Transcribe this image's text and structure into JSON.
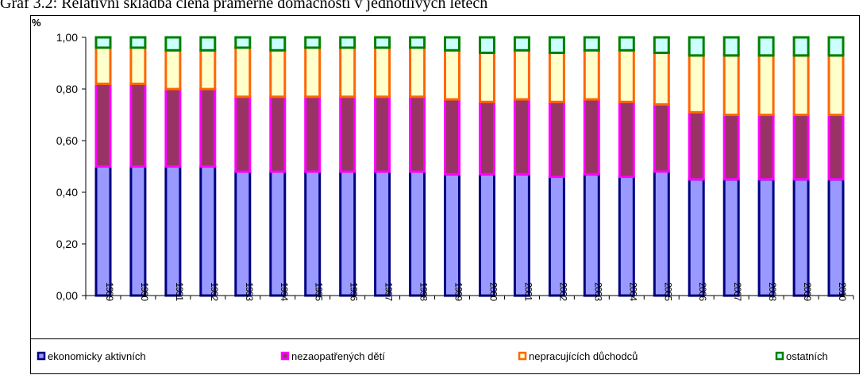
{
  "chart_data": {
    "type": "bar",
    "stacked": true,
    "title": "Graf 3.2: Relativní skladba člena praměrné domácnosti v jednotlivých letech",
    "ylabel": "%",
    "ylim": [
      0,
      1
    ],
    "yticks": [
      "0,00",
      "0,20",
      "0,40",
      "0,60",
      "0,80",
      "1,00"
    ],
    "grid": false,
    "legend_position": "bottom",
    "categories": [
      "1989",
      "1990",
      "1991",
      "1992",
      "1993",
      "1994",
      "1995",
      "1996",
      "1997",
      "1998",
      "1999",
      "2000",
      "2001",
      "2002",
      "2003",
      "2004",
      "2005",
      "2006",
      "2007",
      "2008",
      "2009",
      "2010"
    ],
    "series": [
      {
        "name": "ekonomicky aktivních",
        "fill": "#9999ff",
        "stroke": "#000080",
        "values": [
          0.5,
          0.5,
          0.5,
          0.5,
          0.48,
          0.48,
          0.48,
          0.48,
          0.48,
          0.48,
          0.47,
          0.47,
          0.47,
          0.46,
          0.47,
          0.46,
          0.48,
          0.45,
          0.45,
          0.45,
          0.45,
          0.45
        ]
      },
      {
        "name": "nezaopatřených dětí",
        "fill": "#993366",
        "stroke": "#ff00ff",
        "values": [
          0.32,
          0.32,
          0.3,
          0.3,
          0.29,
          0.29,
          0.29,
          0.29,
          0.29,
          0.29,
          0.29,
          0.28,
          0.29,
          0.29,
          0.29,
          0.29,
          0.26,
          0.26,
          0.25,
          0.25,
          0.25,
          0.25
        ]
      },
      {
        "name": "nepracujících důchodců",
        "fill": "#ffffcc",
        "stroke": "#ff6600",
        "values": [
          0.14,
          0.14,
          0.15,
          0.15,
          0.19,
          0.18,
          0.19,
          0.19,
          0.19,
          0.19,
          0.19,
          0.19,
          0.19,
          0.19,
          0.19,
          0.2,
          0.2,
          0.22,
          0.23,
          0.23,
          0.23,
          0.23
        ]
      },
      {
        "name": "ostatních",
        "fill": "#ccffff",
        "stroke": "#008000",
        "values": [
          0.04,
          0.04,
          0.05,
          0.05,
          0.04,
          0.05,
          0.04,
          0.04,
          0.04,
          0.04,
          0.05,
          0.06,
          0.05,
          0.06,
          0.05,
          0.05,
          0.06,
          0.07,
          0.07,
          0.07,
          0.07,
          0.07
        ]
      }
    ]
  }
}
